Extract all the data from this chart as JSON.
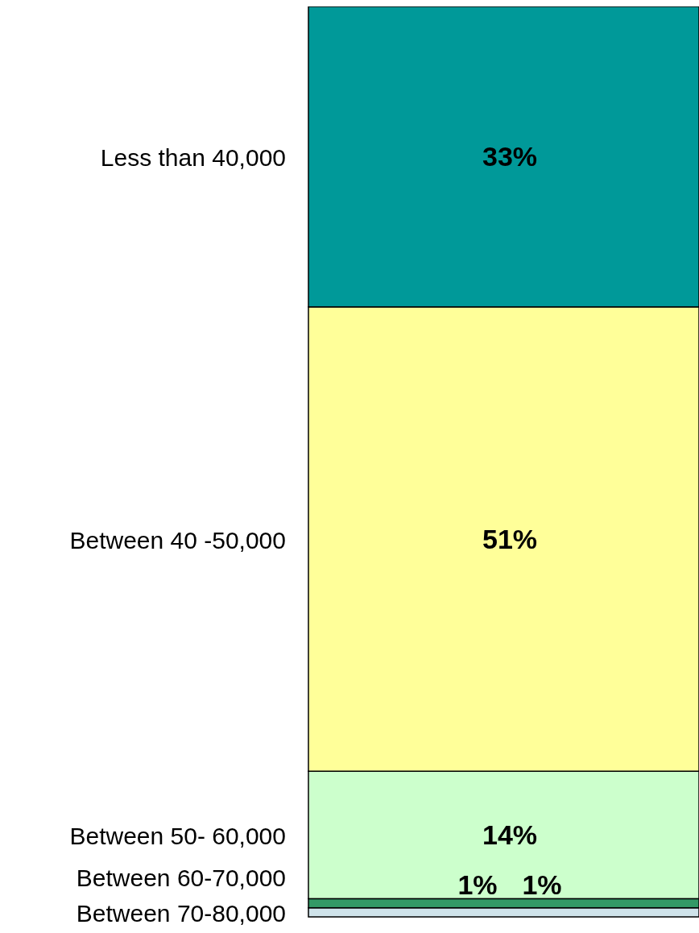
{
  "chart_data": {
    "type": "bar",
    "stacked": true,
    "categories": [
      null
    ],
    "data_labels": true,
    "series": [
      {
        "name": "Between 70-80,000",
        "color": "#cfe3ea",
        "values": [
          1
        ],
        "value_labels": [
          "1%"
        ]
      },
      {
        "name": "Between 60-70,000",
        "color": "#339966",
        "values": [
          1
        ],
        "value_labels": [
          "1%"
        ]
      },
      {
        "name": "Between 50- 60,000",
        "color": "#ccffcc",
        "values": [
          14
        ],
        "value_labels": [
          "14%"
        ]
      },
      {
        "name": "Between 40 -50,000",
        "color": "#ffff99",
        "values": [
          51
        ],
        "value_labels": [
          "51%"
        ]
      },
      {
        "name": "Less than 40,000",
        "color": "#009999",
        "values": [
          33
        ],
        "value_labels": [
          "33%"
        ]
      }
    ]
  }
}
